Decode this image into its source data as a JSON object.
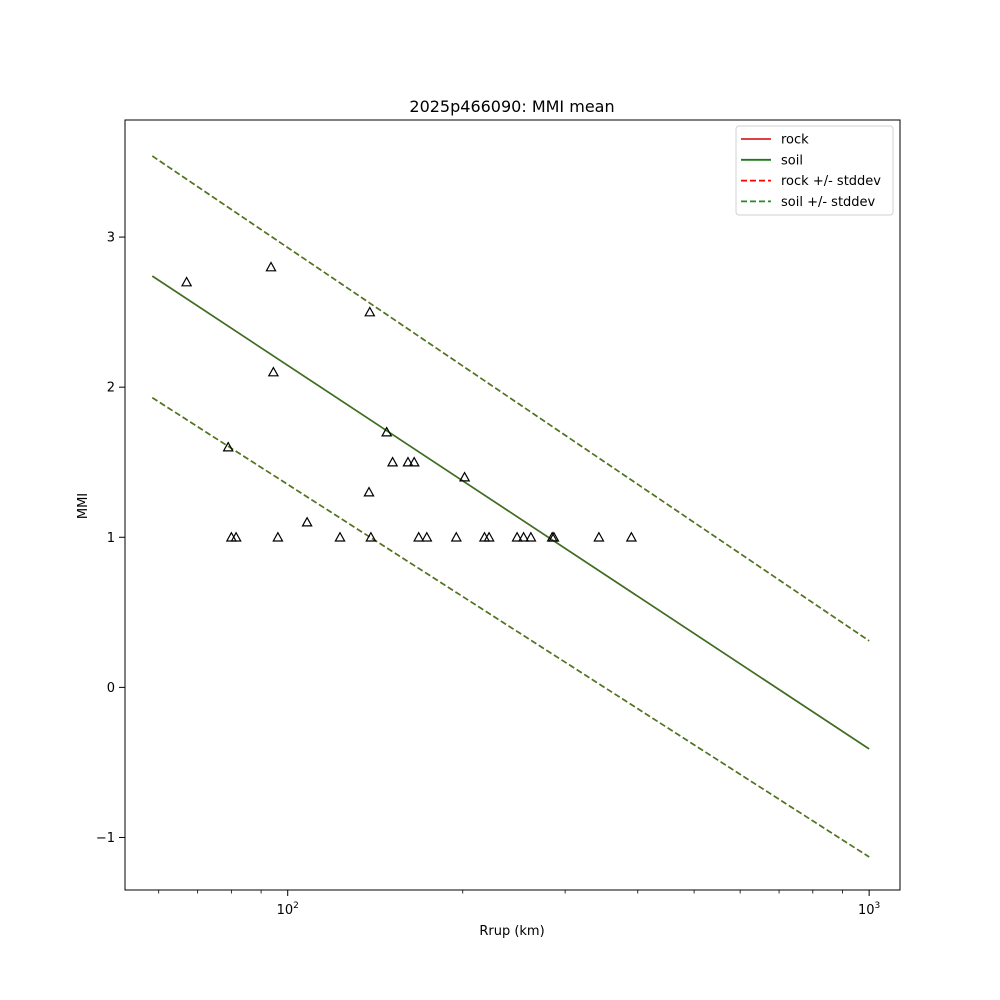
{
  "chart_data": {
    "type": "line",
    "title": "2025p466090: MMI mean",
    "xlabel": "Rrup (km)",
    "ylabel": "MMI",
    "xscale": "log",
    "xlim": [
      52.5,
      1130
    ],
    "ylim": [
      -1.35,
      3.78
    ],
    "grid": false,
    "legend_position": "top-right",
    "xticks": [
      {
        "value": 100,
        "base": "10",
        "exp": "2"
      },
      {
        "value": 1000,
        "base": "10",
        "exp": "3"
      }
    ],
    "xminor_ticks": [
      60,
      70,
      80,
      90,
      200,
      300,
      400,
      500,
      600,
      700,
      800,
      900
    ],
    "yticks": [
      {
        "value": -1,
        "label": "−1"
      },
      {
        "value": 0,
        "label": "0"
      },
      {
        "value": 1,
        "label": "1"
      },
      {
        "value": 2,
        "label": "2"
      },
      {
        "value": 3,
        "label": "3"
      }
    ],
    "series": [
      {
        "name": "rock",
        "style": "solid",
        "color": "#d62728",
        "x": [
          58.5,
          1000
        ],
        "y": [
          2.74,
          -0.41
        ]
      },
      {
        "name": "soil",
        "style": "solid",
        "color": "#1a7a1a",
        "x": [
          58.5,
          1000
        ],
        "y": [
          2.74,
          -0.41
        ]
      },
      {
        "name": "rock +/- stddev",
        "style": "dashed",
        "color": "#ff0000",
        "x": [
          58.5,
          1000
        ],
        "y": [
          3.54,
          0.31
        ],
        "y2": [
          1.93,
          -1.13
        ]
      },
      {
        "name": "soil +/- stddev",
        "style": "dashed",
        "color": "#228b22",
        "x": [
          58.5,
          1000
        ],
        "y": [
          3.54,
          0.31
        ],
        "y2": [
          1.93,
          -1.13
        ]
      }
    ],
    "scatter": {
      "marker": "triangle-open",
      "color": "#000000",
      "points": [
        [
          67,
          2.7
        ],
        [
          93.6,
          2.8
        ],
        [
          94.5,
          2.1
        ],
        [
          79,
          1.6
        ],
        [
          80,
          1.0
        ],
        [
          81.5,
          1.0
        ],
        [
          96.2,
          1.0
        ],
        [
          108,
          1.1
        ],
        [
          123,
          1.0
        ],
        [
          138.4,
          2.5
        ],
        [
          138,
          1.3
        ],
        [
          139,
          1.0
        ],
        [
          148,
          1.7
        ],
        [
          151.5,
          1.5
        ],
        [
          161,
          1.5
        ],
        [
          165,
          1.5
        ],
        [
          168,
          1.0
        ],
        [
          173.5,
          1.0
        ],
        [
          195,
          1.0
        ],
        [
          201.5,
          1.4
        ],
        [
          218,
          1.0
        ],
        [
          222,
          1.0
        ],
        [
          248,
          1.0
        ],
        [
          254.5,
          1.0
        ],
        [
          262,
          1.0
        ],
        [
          285,
          1.0
        ],
        [
          287,
          1.0
        ],
        [
          343,
          1.0
        ],
        [
          390,
          1.0
        ]
      ]
    }
  }
}
